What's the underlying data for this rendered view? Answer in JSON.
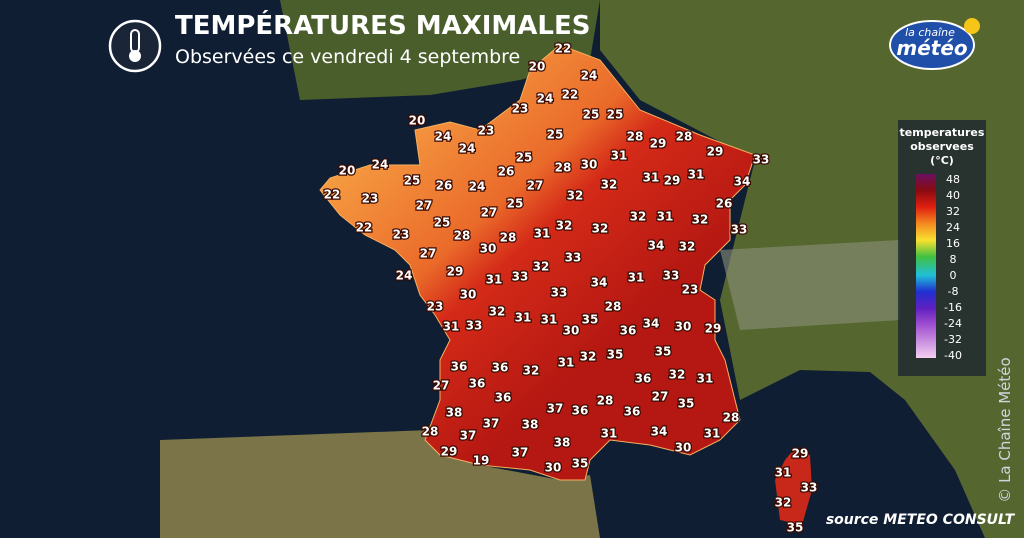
{
  "header": {
    "title": "TEMPÉRATURES MAXIMALES",
    "subtitle": "Observées ce vendredi 4 septembre"
  },
  "logo": {
    "line1": "la chaîne",
    "line2": "météo"
  },
  "legend": {
    "title": [
      "temperatures",
      "observees",
      "(°C)"
    ],
    "ticks": [
      48,
      40,
      32,
      24,
      16,
      8,
      0,
      -8,
      -16,
      -24,
      -32,
      -40
    ]
  },
  "stations": [
    22,
    20,
    24,
    24,
    22,
    23,
    25,
    25,
    20,
    24,
    23,
    25,
    28,
    28,
    24,
    29,
    29,
    33,
    20,
    24,
    25,
    28,
    30,
    31,
    26,
    31,
    29,
    31,
    34,
    25,
    26,
    24,
    27,
    32,
    22,
    23,
    32,
    27,
    25,
    27,
    26,
    32,
    31,
    32,
    22,
    25,
    32,
    32,
    31,
    23,
    28,
    28,
    30,
    33,
    34,
    32,
    27,
    33,
    32,
    29,
    31,
    33,
    24,
    34,
    31,
    33,
    23,
    30,
    33,
    23,
    32,
    28,
    31,
    31,
    35,
    36,
    34,
    30,
    29,
    31,
    33,
    30,
    35,
    32,
    35,
    31,
    36,
    36,
    32,
    27,
    36,
    36,
    32,
    31,
    36,
    27,
    35,
    28,
    37,
    36,
    36,
    38,
    37,
    38,
    28,
    37,
    28,
    34,
    31,
    31,
    38,
    30,
    29,
    19,
    37,
    30,
    35,
    29,
    31,
    33,
    32,
    35
  ],
  "source": "source METEO CONSULT",
  "watermark": "© La Chaîne Météo"
}
